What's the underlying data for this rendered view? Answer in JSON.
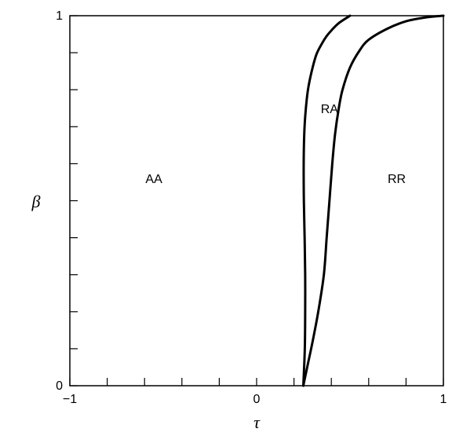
{
  "chart_data": {
    "type": "line",
    "xlabel": "τ",
    "ylabel": "β",
    "xlim": [
      -1,
      1
    ],
    "ylim": [
      0,
      1
    ],
    "x_tick_labels": [
      {
        "value": -1,
        "label": "−1"
      },
      {
        "value": 0,
        "label": "0"
      },
      {
        "value": 1,
        "label": "1"
      }
    ],
    "y_tick_labels": [
      {
        "value": 0,
        "label": "0"
      },
      {
        "value": 1,
        "label": "1"
      }
    ],
    "x_minor_ticks": [
      -0.8,
      -0.6,
      -0.4,
      -0.2,
      0.2,
      0.4,
      0.6,
      0.8
    ],
    "y_minor_ticks": [
      0.1,
      0.2,
      0.3,
      0.4,
      0.5,
      0.6,
      0.7,
      0.8,
      0.9
    ],
    "grid": false,
    "region_labels": [
      {
        "text": "AA",
        "x": -0.55,
        "y": 0.56
      },
      {
        "text": "RA",
        "x": 0.39,
        "y": 0.75
      },
      {
        "text": "RR",
        "x": 0.75,
        "y": 0.56
      }
    ],
    "series": [
      {
        "x": [
          0.25,
          0.258,
          0.26,
          0.26,
          0.257,
          0.253,
          0.252,
          0.255,
          0.262,
          0.275,
          0.295,
          0.32,
          0.35,
          0.375,
          0.4,
          0.44,
          0.5
        ],
        "y": [
          0.0,
          0.1,
          0.2,
          0.3,
          0.4,
          0.5,
          0.6,
          0.68,
          0.74,
          0.8,
          0.85,
          0.895,
          0.925,
          0.945,
          0.96,
          0.98,
          1.0
        ]
      },
      {
        "x": [
          0.25,
          0.275,
          0.3,
          0.33,
          0.36,
          0.375,
          0.39,
          0.405,
          0.42,
          0.44,
          0.46,
          0.5,
          0.55,
          0.6,
          0.7,
          0.8,
          0.9,
          1.0
        ],
        "y": [
          0.0,
          0.06,
          0.12,
          0.2,
          0.3,
          0.4,
          0.5,
          0.6,
          0.68,
          0.75,
          0.8,
          0.86,
          0.905,
          0.935,
          0.965,
          0.985,
          0.995,
          1.0
        ]
      }
    ]
  }
}
